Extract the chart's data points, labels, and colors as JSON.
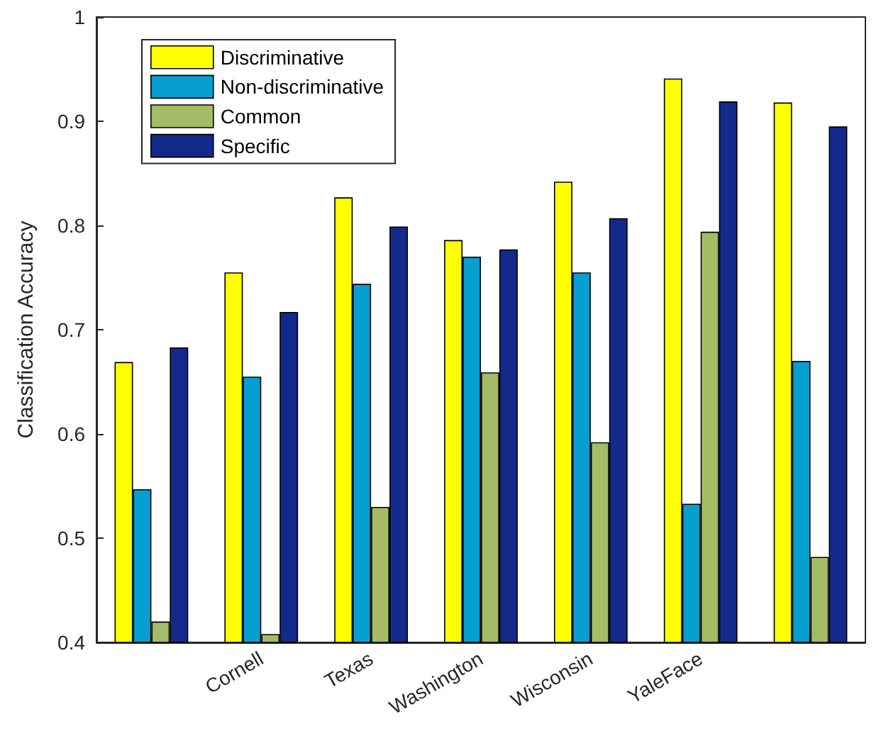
{
  "chart_data": {
    "type": "bar",
    "ylabel": "Classification Accuracy",
    "categories": [
      null,
      "Cornell",
      "Texas",
      "Washington",
      "Wisconsin",
      "YaleFace",
      null
    ],
    "series": [
      {
        "name": "Discriminative",
        "color": "#ffff00",
        "values": [
          0.669,
          0.755,
          0.827,
          0.786,
          0.842,
          0.941,
          0.918
        ]
      },
      {
        "name": "Non-discriminative",
        "color": "#069fd0",
        "values": [
          0.547,
          0.655,
          0.744,
          0.77,
          0.755,
          0.533,
          0.67
        ]
      },
      {
        "name": "Common",
        "color": "#a4bc66",
        "values": [
          0.42,
          0.408,
          0.53,
          0.659,
          0.592,
          0.794,
          0.482
        ]
      },
      {
        "name": "Specific",
        "color": "#132a8a",
        "values": [
          0.683,
          0.717,
          0.799,
          0.777,
          0.807,
          0.919,
          0.895
        ]
      }
    ],
    "ylim": [
      0.4,
      1
    ],
    "yticks": [
      0.4,
      0.5,
      0.6,
      0.7,
      0.8,
      0.9,
      1
    ],
    "grid": false,
    "legend": "top left"
  }
}
